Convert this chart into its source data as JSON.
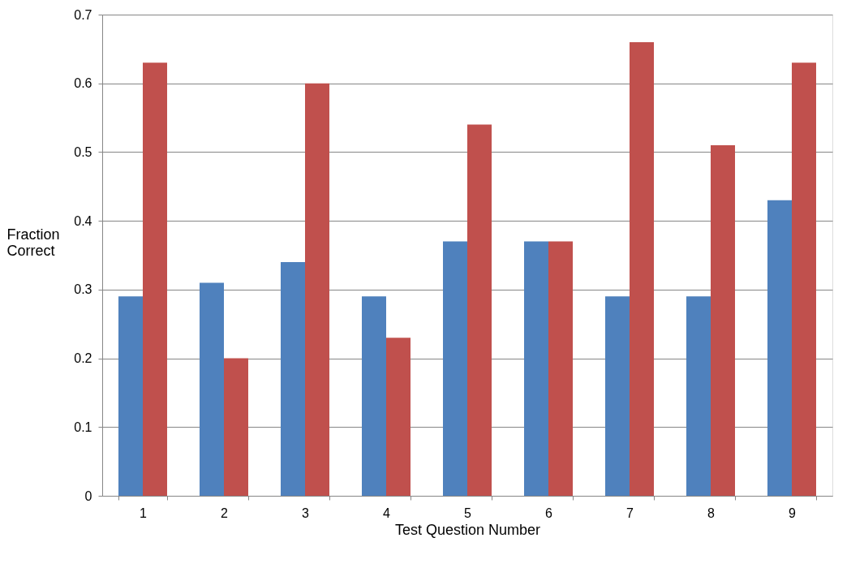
{
  "chart_data": {
    "type": "bar",
    "xlabel": "Test Question Number",
    "ylabel": "Fraction Correct",
    "categories": [
      "1",
      "2",
      "3",
      "4",
      "5",
      "6",
      "7",
      "8",
      "9"
    ],
    "series": [
      {
        "color": "#4f81bd",
        "values": [
          0.29,
          0.31,
          0.34,
          0.29,
          0.37,
          0.37,
          0.29,
          0.29,
          0.43
        ]
      },
      {
        "color": "#c0504d",
        "values": [
          0.63,
          0.2,
          0.6,
          0.23,
          0.54,
          0.37,
          0.66,
          0.51,
          0.63
        ]
      }
    ],
    "ylim": [
      0,
      0.7
    ],
    "yticks": [
      0,
      0.1,
      0.2,
      0.3,
      0.4,
      0.5,
      0.6,
      0.7
    ],
    "grid": "y",
    "legend": false
  }
}
